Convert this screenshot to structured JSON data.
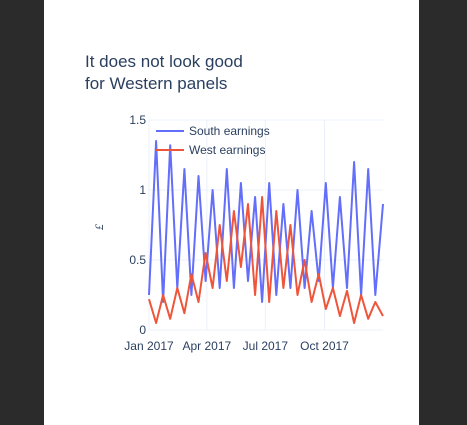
{
  "chart_data": {
    "type": "line",
    "title": "It does not look good\nfor Western panels",
    "xlabel": "",
    "ylabel": "£",
    "x_ticks": [
      "Jan 2017",
      "Apr 2017",
      "Jul 2017",
      "Oct 2017"
    ],
    "y_ticks": [
      "0",
      "0.5",
      "1",
      "1.5"
    ],
    "x_range": [
      "2017-01-01",
      "2017-12-31"
    ],
    "ylim": [
      0,
      1.5
    ],
    "grid": true,
    "legend_placement": "top-left",
    "series": [
      {
        "name": "South earnings",
        "color": "#636efa",
        "x": [
          "2017-01-01",
          "2017-01-12",
          "2017-01-23",
          "2017-02-03",
          "2017-02-14",
          "2017-02-25",
          "2017-03-08",
          "2017-03-19",
          "2017-03-30",
          "2017-04-10",
          "2017-04-21",
          "2017-05-02",
          "2017-05-13",
          "2017-05-24",
          "2017-06-04",
          "2017-06-15",
          "2017-06-26",
          "2017-07-07",
          "2017-07-18",
          "2017-07-29",
          "2017-08-09",
          "2017-08-20",
          "2017-08-31",
          "2017-09-11",
          "2017-09-22",
          "2017-10-03",
          "2017-10-14",
          "2017-10-25",
          "2017-11-05",
          "2017-11-16",
          "2017-11-27",
          "2017-12-08",
          "2017-12-19",
          "2017-12-31"
        ],
        "values": [
          0.25,
          1.35,
          0.2,
          1.32,
          0.3,
          1.15,
          0.25,
          1.1,
          0.35,
          1.0,
          0.3,
          1.15,
          0.3,
          1.05,
          0.35,
          0.95,
          0.2,
          1.05,
          0.25,
          0.9,
          0.3,
          1.0,
          0.3,
          0.85,
          0.35,
          1.05,
          0.3,
          0.95,
          0.3,
          1.2,
          0.25,
          1.15,
          0.25,
          0.9
        ]
      },
      {
        "name": "West earnings",
        "color": "#ef553b",
        "x": [
          "2017-01-01",
          "2017-01-12",
          "2017-01-23",
          "2017-02-03",
          "2017-02-14",
          "2017-02-25",
          "2017-03-08",
          "2017-03-19",
          "2017-03-30",
          "2017-04-10",
          "2017-04-21",
          "2017-05-02",
          "2017-05-13",
          "2017-05-24",
          "2017-06-04",
          "2017-06-15",
          "2017-06-26",
          "2017-07-07",
          "2017-07-18",
          "2017-07-29",
          "2017-08-09",
          "2017-08-20",
          "2017-08-31",
          "2017-09-11",
          "2017-09-22",
          "2017-10-03",
          "2017-10-14",
          "2017-10-25",
          "2017-11-05",
          "2017-11-16",
          "2017-11-27",
          "2017-12-08",
          "2017-12-19",
          "2017-12-31"
        ],
        "values": [
          0.22,
          0.05,
          0.25,
          0.08,
          0.3,
          0.12,
          0.4,
          0.2,
          0.55,
          0.3,
          0.75,
          0.35,
          0.85,
          0.45,
          0.9,
          0.25,
          0.95,
          0.2,
          0.85,
          0.3,
          0.75,
          0.25,
          0.5,
          0.2,
          0.4,
          0.15,
          0.3,
          0.1,
          0.28,
          0.05,
          0.25,
          0.08,
          0.2,
          0.1
        ]
      }
    ]
  }
}
